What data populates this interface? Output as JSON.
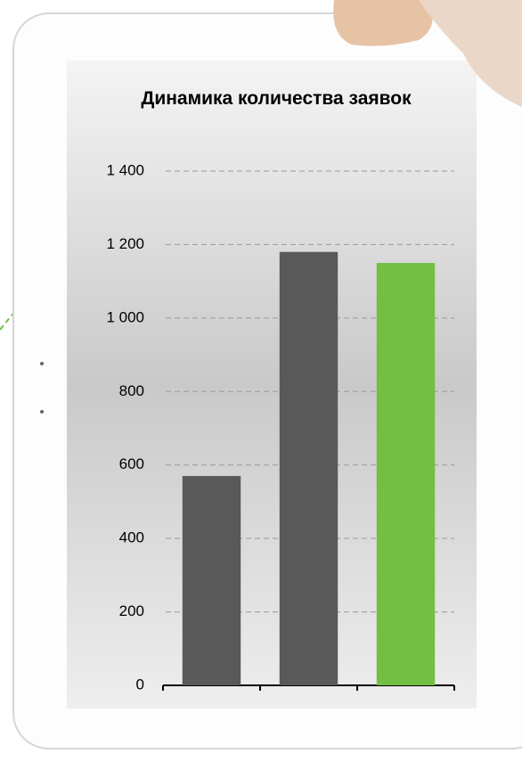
{
  "chart_data": {
    "type": "bar",
    "title": "Динамика количества заявок",
    "categories": [
      null,
      null,
      null
    ],
    "values": [
      570,
      1180,
      1150
    ],
    "colors": [
      "#595959",
      "#595959",
      "#72bf44"
    ],
    "ylim": [
      0,
      1400
    ],
    "yticks": [
      0,
      200,
      400,
      600,
      800,
      {
        "value": 1000,
        "label": "1 000"
      },
      {
        "value": 1200,
        "label": "1 200"
      },
      {
        "value": 1400,
        "label": "1 400"
      }
    ],
    "grid": true
  }
}
